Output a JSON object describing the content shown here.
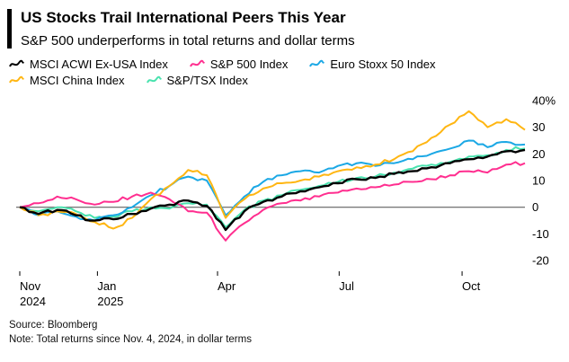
{
  "header": {
    "title": "US Stocks Trail International Peers This Year",
    "subtitle": "S&P 500 underperforms in total returns and dollar terms"
  },
  "legend": {
    "rows": [
      [
        {
          "label": "MSCI ACWI Ex-USA Index",
          "color": "#000000"
        },
        {
          "label": "S&P 500 Index",
          "color": "#ff2e8f"
        },
        {
          "label": "Euro Stoxx 50 Index",
          "color": "#1ba8e5"
        }
      ],
      [
        {
          "label": "MSCI China Index",
          "color": "#ffb612"
        },
        {
          "label": "S&P/TSX Index",
          "color": "#49e2ae"
        }
      ]
    ]
  },
  "chart_data": {
    "type": "line",
    "title": "US Stocks Trail International Peers This Year",
    "subtitle": "S&P 500 underperforms in total returns and dollar terms",
    "y_unit": "%",
    "ylim": [
      -24,
      42
    ],
    "grid": "zero-line-only",
    "legend_position": "top",
    "y_tick_values": [
      40,
      30,
      20,
      10,
      0,
      -10,
      -20
    ],
    "y_tick_labels": [
      "40%",
      "30",
      "20",
      "10",
      "0",
      "-10",
      "-20"
    ],
    "x_domain": [
      0,
      27
    ],
    "x_note": "index 0 = Nov 4 2024, one step = two weeks, index 27 = mid-Nov 2025",
    "x_ticks": [
      {
        "x": 0,
        "line1": "Nov",
        "line2": "2024"
      },
      {
        "x": 4.15,
        "line1": "Jan",
        "line2": "2025"
      },
      {
        "x": 10.57,
        "line1": "Apr"
      },
      {
        "x": 17.07,
        "line1": "Jul"
      },
      {
        "x": 23.64,
        "line1": "Oct"
      }
    ],
    "draw_order": [
      4,
      2,
      1,
      3,
      0
    ],
    "series": [
      {
        "name": "MSCI ACWI Ex-USA Index",
        "color": "#000000",
        "values": [
          0,
          -2.5,
          -1,
          -3,
          -5,
          -4.5,
          -2.5,
          -0.5,
          1,
          2.5,
          0.5,
          -8.5,
          -1.5,
          2,
          4,
          6,
          7.5,
          9,
          10.5,
          11,
          12.5,
          13.5,
          15,
          16.5,
          18,
          19,
          21,
          21.5
        ]
      },
      {
        "name": "S&P 500 Index",
        "color": "#ff2e8f",
        "values": [
          0,
          1.5,
          4,
          3,
          1,
          2,
          4,
          5.5,
          3,
          -1.5,
          -2,
          -12.5,
          -6,
          -1,
          1.5,
          2.5,
          4,
          5.5,
          7,
          7.5,
          8.5,
          9.5,
          10.5,
          12,
          13.5,
          13,
          16,
          16.5
        ]
      },
      {
        "name": "Euro Stoxx 50 Index",
        "color": "#1ba8e5",
        "values": [
          0,
          -3,
          -1.5,
          -3.5,
          -5,
          -3,
          0,
          4.5,
          8,
          11.5,
          10,
          -3,
          4,
          9.5,
          12,
          13.5,
          13,
          15.5,
          16.5,
          15.5,
          16.5,
          18,
          20,
          22,
          25,
          22.5,
          24.5,
          23.5
        ]
      },
      {
        "name": "MSCI China Index",
        "color": "#ffb612",
        "values": [
          0,
          -3,
          -1.5,
          -2.5,
          -5.5,
          -8,
          -4,
          3,
          8,
          14,
          12,
          -4,
          3,
          7,
          9,
          10,
          11.5,
          13.5,
          15,
          16,
          18,
          21,
          26,
          31,
          36,
          30,
          33,
          29
        ]
      },
      {
        "name": "S&P/TSX Index",
        "color": "#49e2ae",
        "values": [
          0,
          -1.5,
          0,
          -1.5,
          -4,
          -3.5,
          -1.5,
          0,
          -0.5,
          1.5,
          1,
          -7.5,
          -1,
          2.5,
          4.5,
          6.5,
          8,
          9.5,
          11,
          11.5,
          13,
          14.5,
          16,
          17,
          19,
          19.5,
          21.5,
          22
        ]
      }
    ]
  },
  "footer": {
    "source": "Source: Bloomberg",
    "note": "Note: Total returns since Nov. 4, 2024, in dollar terms"
  }
}
